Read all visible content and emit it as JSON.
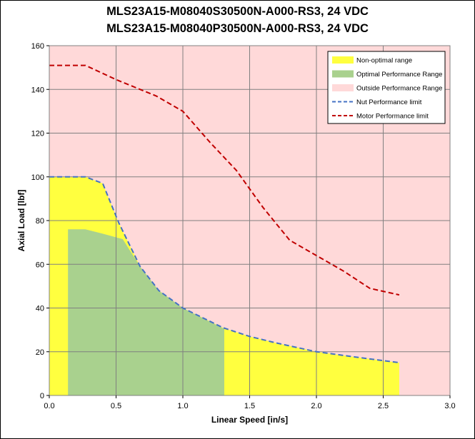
{
  "chart_data": {
    "type": "area",
    "title_lines": [
      "MLS23A15-M08040S30500N-A000-RS3, 24 VDC",
      "MLS23A15-M08040P30500N-A000-RS3, 24 VDC"
    ],
    "xlabel": "Linear Speed [in/s]",
    "ylabel": "Axial Load [lbf]",
    "xlim": [
      0,
      3.0
    ],
    "ylim": [
      0,
      160
    ],
    "xticks": [
      0.0,
      0.5,
      1.0,
      1.5,
      2.0,
      2.5,
      3.0
    ],
    "xtick_labels": [
      "0.0",
      "0.5",
      "1.0",
      "1.5",
      "2.0",
      "2.5",
      "3.0"
    ],
    "yticks": [
      0,
      20,
      40,
      60,
      80,
      100,
      120,
      140,
      160
    ],
    "ytick_labels": [
      "0",
      "20",
      "40",
      "60",
      "80",
      "100",
      "120",
      "140",
      "160"
    ],
    "grid": true,
    "legend_position": "top-right",
    "colors": {
      "outside": "#ffd9d9",
      "non_optimal": "#ffff3f",
      "optimal": "#a9d18e",
      "nut_line": "#4472c4",
      "motor_line": "#c00000",
      "grid": "#808080"
    },
    "series": [
      {
        "name": "Non-optimal range",
        "kind": "fill",
        "x": [
          0,
          0.27,
          0.4,
          0.52,
          0.68,
          0.82,
          1.0,
          1.3,
          1.5,
          1.7,
          2.0,
          2.3,
          2.62
        ],
        "y": [
          100,
          100,
          97,
          79,
          59,
          48,
          40,
          31,
          27,
          24,
          20,
          17.5,
          15
        ]
      },
      {
        "name": "Optimal Performance Range",
        "kind": "fill",
        "x": [
          0.14,
          0.27,
          0.4,
          0.55,
          0.68,
          0.82,
          1.0,
          1.31
        ],
        "y": [
          76,
          76,
          74,
          71.5,
          59,
          48,
          40,
          30.5
        ]
      },
      {
        "name": "Outside Performance Range",
        "kind": "background"
      },
      {
        "name": "Nut Performance limit",
        "kind": "line",
        "x": [
          0,
          0.27,
          0.4,
          0.52,
          0.68,
          0.82,
          1.0,
          1.3,
          1.5,
          1.7,
          2.0,
          2.3,
          2.62
        ],
        "y": [
          100,
          100,
          97,
          79,
          59,
          48,
          40,
          31,
          27,
          24,
          20,
          17.5,
          15
        ]
      },
      {
        "name": "Motor Performance limit",
        "kind": "line",
        "x": [
          0,
          0.27,
          0.5,
          0.8,
          1.0,
          1.2,
          1.4,
          1.6,
          1.8,
          2.0,
          2.2,
          2.4,
          2.62
        ],
        "y": [
          151,
          151,
          144.5,
          137,
          130,
          116,
          103,
          86,
          71,
          64,
          57,
          49,
          46
        ]
      }
    ]
  }
}
